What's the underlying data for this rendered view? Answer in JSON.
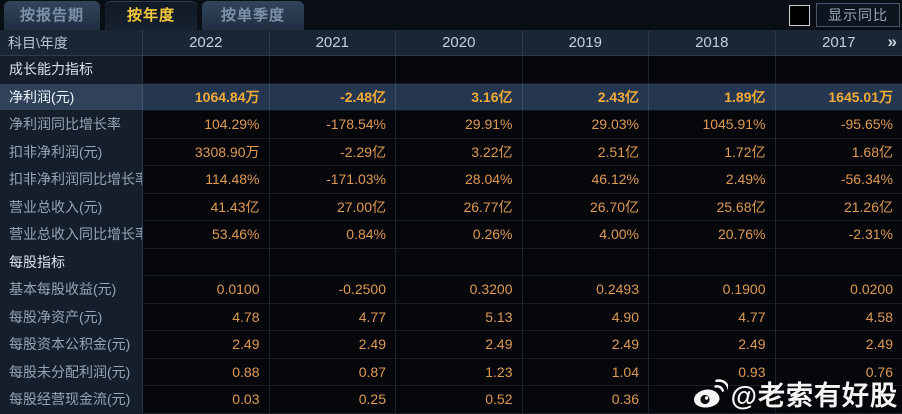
{
  "tabs": [
    {
      "label": "按报告期",
      "active": false
    },
    {
      "label": "按年度",
      "active": true
    },
    {
      "label": "按单季度",
      "active": false
    }
  ],
  "controls": {
    "show_yoy_label": "显示同比",
    "checkbox_checked": false
  },
  "colors": {
    "active_tab_text": "#f8c93e",
    "value_orange": "#df9955",
    "highlight_value_gold": "#f0ac3a",
    "highlight_row_bg": "#253650",
    "header_bg": "#1a2634",
    "label_col_bg": "#141f2b",
    "value_bg": "#05070b"
  },
  "table": {
    "corner_label": "科目\\年度",
    "years": [
      "2022",
      "2021",
      "2020",
      "2019",
      "2018",
      "2017"
    ],
    "more_icon": "»",
    "rows": [
      {
        "type": "section",
        "label": "成长能力指标"
      },
      {
        "type": "highlight",
        "label": "净利润(元)",
        "values": [
          "1064.84万",
          "-2.48亿",
          "3.16亿",
          "2.43亿",
          "1.89亿",
          "1645.01万"
        ]
      },
      {
        "type": "data",
        "label": "净利润同比增长率",
        "values": [
          "104.29%",
          "-178.54%",
          "29.91%",
          "29.03%",
          "1045.91%",
          "-95.65%"
        ]
      },
      {
        "type": "data",
        "label": "扣非净利润(元)",
        "values": [
          "3308.90万",
          "-2.29亿",
          "3.22亿",
          "2.51亿",
          "1.72亿",
          "1.68亿"
        ]
      },
      {
        "type": "data",
        "label": "扣非净利润同比增长率",
        "values": [
          "114.48%",
          "-171.03%",
          "28.04%",
          "46.12%",
          "2.49%",
          "-56.34%"
        ]
      },
      {
        "type": "data",
        "label": "营业总收入(元)",
        "values": [
          "41.43亿",
          "27.00亿",
          "26.77亿",
          "26.70亿",
          "25.68亿",
          "21.26亿"
        ]
      },
      {
        "type": "data",
        "label": "营业总收入同比增长率",
        "values": [
          "53.46%",
          "0.84%",
          "0.26%",
          "4.00%",
          "20.76%",
          "-2.31%"
        ]
      },
      {
        "type": "section",
        "label": "每股指标"
      },
      {
        "type": "data",
        "label": "基本每股收益(元)",
        "values": [
          "0.0100",
          "-0.2500",
          "0.3200",
          "0.2493",
          "0.1900",
          "0.0200"
        ]
      },
      {
        "type": "data",
        "label": "每股净资产(元)",
        "values": [
          "4.78",
          "4.77",
          "5.13",
          "4.90",
          "4.77",
          "4.58"
        ]
      },
      {
        "type": "data",
        "label": "每股资本公积金(元)",
        "values": [
          "2.49",
          "2.49",
          "2.49",
          "2.49",
          "2.49",
          "2.49"
        ]
      },
      {
        "type": "data",
        "label": "每股未分配利润(元)",
        "values": [
          "0.88",
          "0.87",
          "1.23",
          "1.04",
          "0.93",
          "0.76"
        ]
      },
      {
        "type": "data",
        "label": "每股经营现金流(元)",
        "values": [
          "0.03",
          "0.25",
          "0.52",
          "0.36",
          "",
          ""
        ]
      }
    ]
  },
  "watermark": {
    "text": "@老索有好股",
    "icon": "weibo-icon"
  }
}
